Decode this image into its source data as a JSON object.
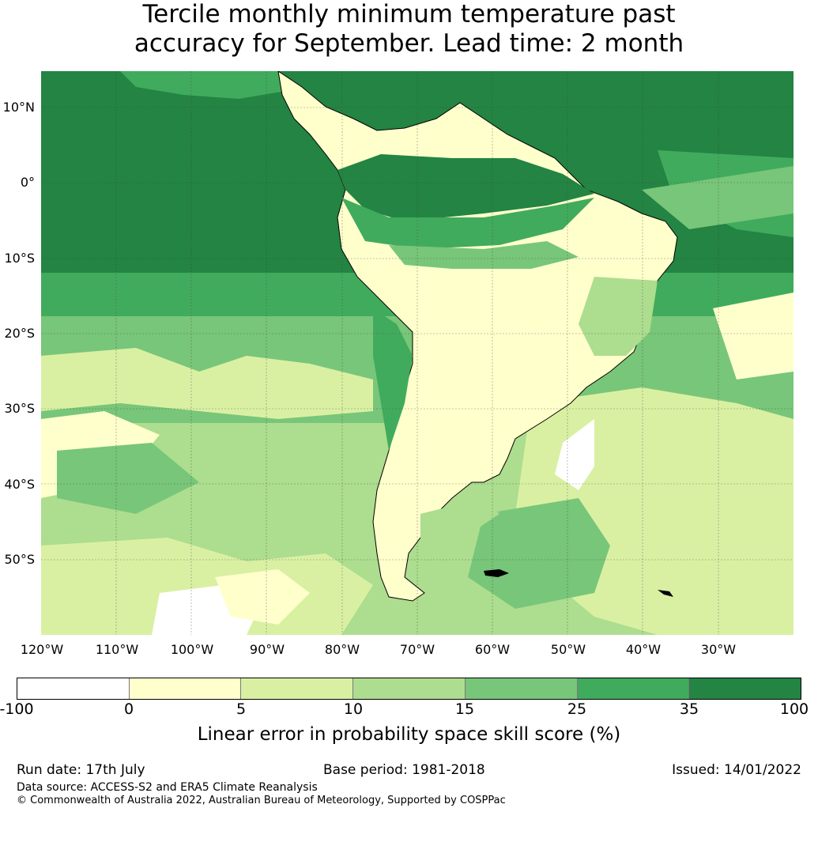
{
  "title_line1": "Tercile monthly minimum temperature past",
  "title_line2": "accuracy for September. Lead time: 2 month",
  "map": {
    "lat_labels": [
      "10°N",
      "0°",
      "10°S",
      "20°S",
      "30°S",
      "40°S",
      "50°S"
    ],
    "lon_labels": [
      "120°W",
      "110°W",
      "100°W",
      "90°W",
      "80°W",
      "70°W",
      "60°W",
      "50°W",
      "40°W",
      "30°W"
    ],
    "palette": {
      "neg": "#ffffff",
      "b0_5": "#ffffcc",
      "b5_10": "#d9f0a3",
      "b10_15": "#addd8e",
      "b15_25": "#78c679",
      "b25_35": "#41ab5d",
      "b35_100": "#238443"
    }
  },
  "colorbar": {
    "ticks": [
      "-100",
      "0",
      "5",
      "10",
      "15",
      "25",
      "35",
      "100"
    ],
    "colors": [
      "#ffffff",
      "#ffffcc",
      "#d9f0a3",
      "#addd8e",
      "#78c679",
      "#41ab5d",
      "#238443"
    ],
    "label": "Linear error in probability space skill score (%)"
  },
  "footer": {
    "run_date": "Run date: 17th July",
    "base_period": "Base period: 1981-2018",
    "issued": "Issued: 14/01/2022",
    "data_source": "Data source: ACCESS-S2 and ERA5 Climate Reanalysis",
    "copyright": "© Commonwealth of Australia 2022, Australian Bureau of Meteorology, Supported by COSPPac"
  }
}
